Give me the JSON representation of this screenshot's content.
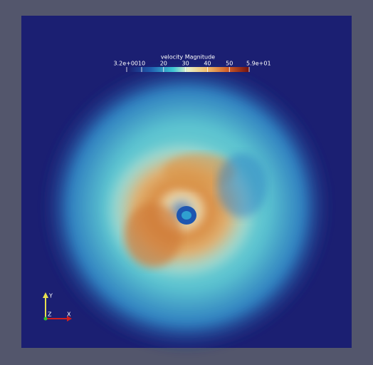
{
  "colorbar": {
    "title": "velocity Magnitude",
    "range": [
      3.2,
      59
    ],
    "ticks": [
      {
        "value": 3.2,
        "label": "3.2e+00"
      },
      10,
      20,
      30,
      40,
      50,
      {
        "value": 59,
        "label": "5.9e+01"
      }
    ]
  },
  "axes": {
    "x": "X",
    "y": "Y",
    "z": "Z"
  }
}
